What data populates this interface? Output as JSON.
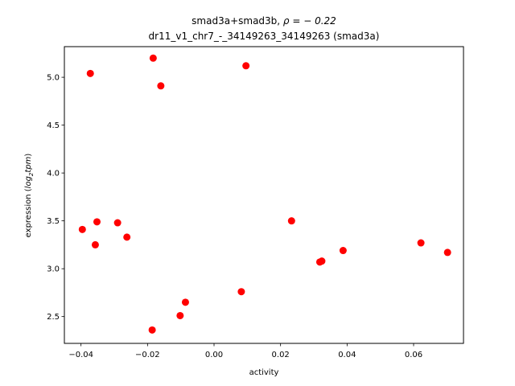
{
  "chart_data": {
    "type": "scatter",
    "title_line1_prefix": "smad3a+smad3b, ",
    "title_rho": "ρ = − 0.22",
    "title_line2": "dr11_v1_chr7_-_34149263_34149263 (smad3a)",
    "xlabel": "activity",
    "ylabel_prefix": "expression (",
    "ylabel_math": "log",
    "ylabel_sub": "2",
    "ylabel_math2": "tpm",
    "ylabel_suffix": ")",
    "xlim": [
      -0.045,
      0.075
    ],
    "ylim": [
      2.22,
      5.32
    ],
    "x_ticks": [
      -0.04,
      -0.02,
      0.0,
      0.02,
      0.04,
      0.06
    ],
    "x_tick_labels": [
      "−0.04",
      "−0.02",
      "0.00",
      "0.02",
      "0.04",
      "0.06"
    ],
    "y_ticks": [
      2.5,
      3.0,
      3.5,
      4.0,
      4.5,
      5.0
    ],
    "y_tick_labels": [
      "2.5",
      "3.0",
      "3.5",
      "4.0",
      "4.5",
      "5.0"
    ],
    "marker_color": "#ff0000",
    "points": [
      {
        "x": -0.0396,
        "y": 3.41
      },
      {
        "x": -0.0372,
        "y": 5.04
      },
      {
        "x": -0.0352,
        "y": 3.49
      },
      {
        "x": -0.0357,
        "y": 3.25
      },
      {
        "x": -0.029,
        "y": 3.48
      },
      {
        "x": -0.0262,
        "y": 3.33
      },
      {
        "x": -0.0183,
        "y": 5.2
      },
      {
        "x": -0.016,
        "y": 4.91
      },
      {
        "x": -0.0186,
        "y": 2.36
      },
      {
        "x": -0.0102,
        "y": 2.51
      },
      {
        "x": -0.0086,
        "y": 2.65
      },
      {
        "x": 0.0082,
        "y": 2.76
      },
      {
        "x": 0.0096,
        "y": 5.12
      },
      {
        "x": 0.0233,
        "y": 3.5
      },
      {
        "x": 0.0318,
        "y": 3.07
      },
      {
        "x": 0.0324,
        "y": 3.08
      },
      {
        "x": 0.0388,
        "y": 3.19
      },
      {
        "x": 0.0622,
        "y": 3.27
      },
      {
        "x": 0.0702,
        "y": 3.17
      }
    ]
  }
}
